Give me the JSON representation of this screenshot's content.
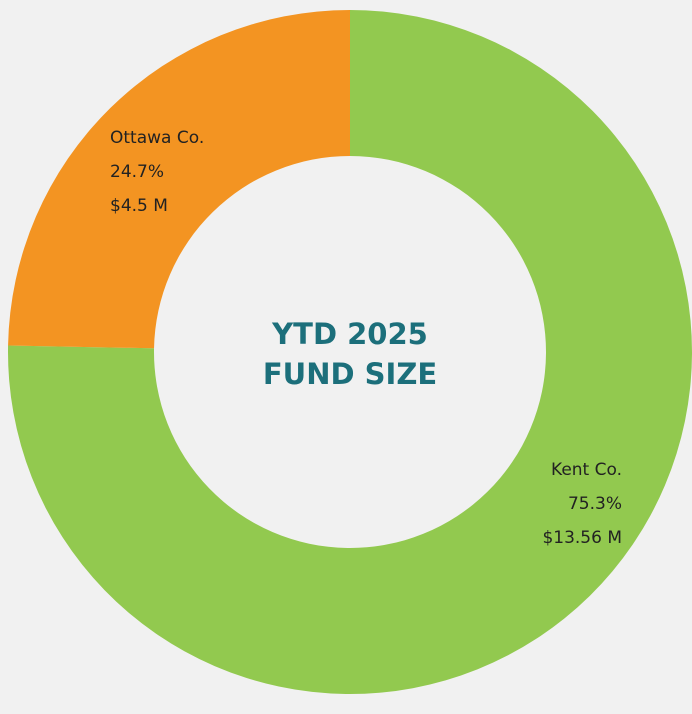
{
  "chart_data": {
    "type": "donut",
    "title_lines": [
      "YTD 2025",
      "FUND SIZE"
    ],
    "categories": [
      "Kent Co.",
      "Ottawa Co."
    ],
    "values": [
      75.3,
      24.7
    ],
    "value_labels": [
      "75.3%",
      "24.7%"
    ],
    "amount_labels": [
      "$13.56 M",
      "$4.5 M"
    ],
    "colors": [
      "#92c94f",
      "#f39422"
    ]
  }
}
